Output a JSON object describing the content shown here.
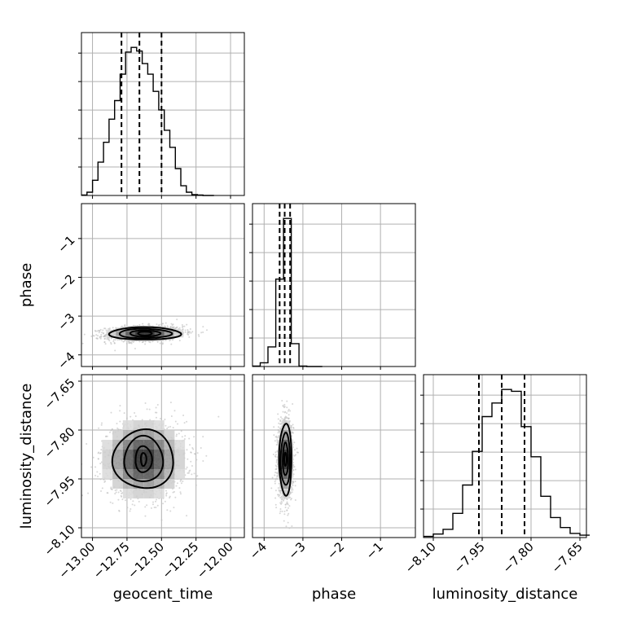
{
  "chart_data": {
    "type": "corner",
    "parameters": [
      "geocent_time",
      "phase",
      "luminosity_distance"
    ],
    "axes": {
      "geocent_time": {
        "range": [
          -13.08,
          -11.9
        ],
        "ticks": [
          -13.0,
          -12.75,
          -12.5,
          -12.25,
          -12.0
        ],
        "tick_labels": [
          "−13.00",
          "−12.75",
          "−12.50",
          "−12.25",
          "−12.00"
        ]
      },
      "phase": {
        "range": [
          -4.3,
          -0.1
        ],
        "ticks": [
          -4,
          -3,
          -2,
          -1
        ],
        "tick_labels": [
          "−4",
          "−3",
          "−2",
          "−1"
        ]
      },
      "luminosity_distance": {
        "range": [
          -8.13,
          -7.63
        ],
        "ticks": [
          -8.1,
          -7.95,
          -7.8,
          -7.65
        ],
        "tick_labels": [
          "−8.10",
          "−7.95",
          "−7.80",
          "−7.65"
        ]
      }
    },
    "grid": true,
    "histograms": {
      "geocent_time": {
        "edges": [
          -13.08,
          -13.04,
          -13.0,
          -12.96,
          -12.92,
          -12.88,
          -12.84,
          -12.8,
          -12.76,
          -12.72,
          -12.68,
          -12.64,
          -12.6,
          -12.56,
          -12.52,
          -12.48,
          -12.44,
          -12.4,
          -12.36,
          -12.32,
          -12.28,
          -12.24,
          -12.2,
          -12.16,
          -12.12
        ],
        "counts": [
          1,
          7,
          33,
          72,
          115,
          165,
          205,
          262,
          310,
          320,
          312,
          285,
          262,
          225,
          185,
          141,
          104,
          58,
          21,
          7,
          2,
          1,
          0,
          0
        ],
        "quantiles": [
          -12.79,
          -12.66,
          -12.5
        ]
      },
      "phase": {
        "edges": [
          -4.3,
          -4.1,
          -3.9,
          -3.7,
          -3.5,
          -3.3,
          -3.1,
          -2.9,
          -2.7,
          -2.5
        ],
        "counts": [
          1,
          8,
          42,
          187,
          317,
          49,
          1,
          0,
          0
        ],
        "quantiles": [
          -3.6,
          -3.47,
          -3.33
        ]
      },
      "luminosity_distance": {
        "edges": [
          -8.13,
          -8.1,
          -8.07,
          -8.04,
          -8.01,
          -7.98,
          -7.95,
          -7.92,
          -7.89,
          -7.86,
          -7.83,
          -7.8,
          -7.77,
          -7.74,
          -7.71,
          -7.68,
          -7.65,
          -7.62
        ],
        "counts": [
          2,
          6,
          14,
          41,
          89,
          146,
          205,
          228,
          251,
          248,
          188,
          137,
          70,
          34,
          17,
          7,
          4
        ],
        "quantiles": [
          -7.96,
          -7.89,
          -7.82
        ]
      }
    },
    "joint": [
      {
        "x": "geocent_time",
        "y": "phase",
        "mean": [
          -12.62,
          -3.45
        ],
        "std": [
          0.14,
          0.1
        ],
        "corr": 0.15,
        "contour_std": [
          [
            0.05,
            0.05
          ],
          [
            0.11,
            0.08
          ],
          [
            0.19,
            0.12
          ],
          [
            0.26,
            0.16
          ]
        ]
      },
      {
        "x": "geocent_time",
        "y": "luminosity_distance",
        "mean": [
          -12.63,
          -7.89
        ],
        "std": [
          0.15,
          0.06
        ],
        "corr": 0.0,
        "contour_std": [
          [
            0.02,
            0.02
          ],
          [
            0.06,
            0.04
          ],
          [
            0.14,
            0.07
          ],
          [
            0.22,
            0.09
          ]
        ]
      },
      {
        "x": "phase",
        "y": "luminosity_distance",
        "mean": [
          -3.45,
          -7.89
        ],
        "std": [
          0.1,
          0.06
        ],
        "corr": 0.0,
        "contour_std": [
          [
            0.03,
            0.02
          ],
          [
            0.07,
            0.05
          ],
          [
            0.12,
            0.08
          ],
          [
            0.16,
            0.11
          ]
        ]
      }
    ],
    "colors": {
      "line": "#000000",
      "grid": "#b0b0b0",
      "points": "#bdbdbd"
    }
  }
}
